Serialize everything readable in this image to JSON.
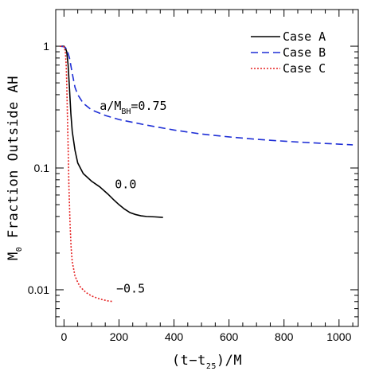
{
  "chart_data": {
    "type": "line",
    "ylabel_main": "M",
    "ylabel_sub": "0",
    "ylabel_rest": " Fraction Outside AH",
    "xlabel_main": "(t−t",
    "xlabel_sub": "25",
    "xlabel_rest": ")/M",
    "xlim": [
      -30,
      1070
    ],
    "ylim": [
      0.005,
      2.0
    ],
    "yscale": "log",
    "x_ticks": [
      0,
      200,
      400,
      600,
      800,
      1000
    ],
    "x_tick_labels": [
      "0",
      "200",
      "400",
      "600",
      "800",
      "1000"
    ],
    "y_ticks": [
      1,
      0.1,
      0.01
    ],
    "y_tick_labels": [
      "1",
      "0.1",
      "0.01"
    ],
    "legend_position": "top-right",
    "series": [
      {
        "name": "Case A",
        "color": "#000000",
        "dash": "solid",
        "annotation": "0.0",
        "annotation_at": [
          185,
          0.068
        ],
        "x": [
          -10,
          0,
          5,
          10,
          15,
          20,
          25,
          30,
          40,
          50,
          70,
          100,
          130,
          160,
          180,
          200,
          220,
          240,
          260,
          280,
          300,
          330,
          360
        ],
        "y": [
          1.0,
          1.0,
          0.97,
          0.9,
          0.7,
          0.45,
          0.28,
          0.2,
          0.14,
          0.11,
          0.09,
          0.078,
          0.07,
          0.061,
          0.055,
          0.05,
          0.046,
          0.043,
          0.0415,
          0.0405,
          0.04,
          0.0397,
          0.0393
        ]
      },
      {
        "name": "Case B",
        "color": "#1f2fd6",
        "dash": "dashed",
        "annotation_prefix": "a/M",
        "annotation_sub": "BH",
        "annotation_suffix": "=0.75",
        "annotation_at": [
          130,
          0.3
        ],
        "x": [
          -15,
          0,
          10,
          20,
          30,
          40,
          50,
          70,
          100,
          150,
          200,
          300,
          400,
          500,
          600,
          700,
          800,
          900,
          1000,
          1050
        ],
        "y": [
          1.0,
          0.99,
          0.95,
          0.8,
          0.6,
          0.46,
          0.4,
          0.34,
          0.3,
          0.27,
          0.25,
          0.225,
          0.205,
          0.19,
          0.18,
          0.172,
          0.166,
          0.161,
          0.157,
          0.155
        ]
      },
      {
        "name": "Case C",
        "color": "#e52222",
        "dash": "dotted",
        "annotation": "−0.5",
        "annotation_at": [
          190,
          0.0095
        ],
        "x": [
          -15,
          0,
          5,
          8,
          10,
          12,
          15,
          18,
          22,
          26,
          30,
          40,
          50,
          60,
          80,
          100,
          130,
          160,
          180
        ],
        "y": [
          1.0,
          0.99,
          0.9,
          0.7,
          0.5,
          0.3,
          0.15,
          0.07,
          0.035,
          0.022,
          0.017,
          0.013,
          0.0115,
          0.0105,
          0.0095,
          0.0089,
          0.0084,
          0.0081,
          0.008
        ]
      }
    ]
  }
}
